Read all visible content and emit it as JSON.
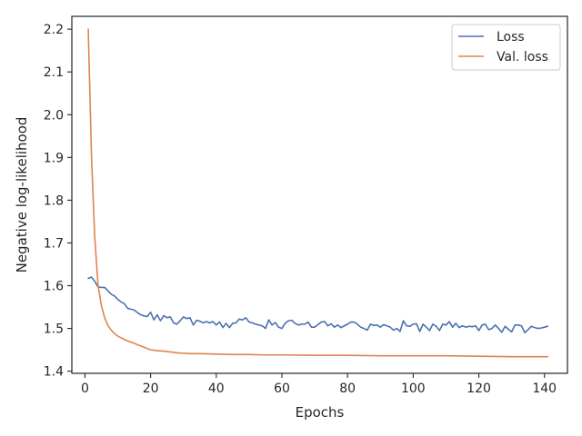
{
  "chart_data": {
    "type": "line",
    "title": "",
    "xlabel": "Epochs",
    "ylabel": "Negative log-likelihood",
    "xlim": [
      -4,
      147
    ],
    "ylim": [
      1.395,
      2.23
    ],
    "x_ticks": [
      0,
      20,
      40,
      60,
      80,
      100,
      120,
      140
    ],
    "y_ticks": [
      1.4,
      1.5,
      1.6,
      1.7,
      1.8,
      1.9,
      2.0,
      2.1,
      2.2
    ],
    "grid": false,
    "legend_position": "top-right",
    "series": [
      {
        "name": "Loss",
        "color": "#4c72b0",
        "x": [
          1,
          2,
          3,
          4,
          5,
          6,
          7,
          8,
          9,
          10,
          11,
          12,
          13,
          14,
          15,
          16,
          17,
          18,
          19,
          20,
          21,
          22,
          23,
          24,
          25,
          26,
          27,
          28,
          29,
          30,
          31,
          32,
          33,
          34,
          35,
          36,
          37,
          38,
          39,
          40,
          41,
          42,
          43,
          44,
          45,
          46,
          47,
          48,
          49,
          50,
          51,
          52,
          53,
          54,
          55,
          56,
          57,
          58,
          59,
          60,
          61,
          62,
          63,
          64,
          65,
          66,
          67,
          68,
          69,
          70,
          71,
          72,
          73,
          74,
          75,
          76,
          77,
          78,
          79,
          80,
          81,
          82,
          83,
          84,
          85,
          86,
          87,
          88,
          89,
          90,
          91,
          92,
          93,
          94,
          95,
          96,
          97,
          98,
          99,
          100,
          101,
          102,
          103,
          104,
          105,
          106,
          107,
          108,
          109,
          110,
          111,
          112,
          113,
          114,
          115,
          116,
          117,
          118,
          119,
          120,
          121,
          122,
          123,
          124,
          125,
          126,
          127,
          128,
          129,
          130,
          131,
          132,
          133,
          134,
          135,
          136,
          137,
          138,
          139,
          140,
          141
        ],
        "values": [
          1.617,
          1.62,
          1.61,
          1.597,
          1.596,
          1.596,
          1.588,
          1.58,
          1.576,
          1.568,
          1.562,
          1.558,
          1.547,
          1.545,
          1.543,
          1.537,
          1.532,
          1.529,
          1.528,
          1.538,
          1.52,
          1.532,
          1.518,
          1.53,
          1.525,
          1.527,
          1.513,
          1.51,
          1.518,
          1.527,
          1.523,
          1.525,
          1.508,
          1.519,
          1.517,
          1.513,
          1.516,
          1.513,
          1.516,
          1.508,
          1.515,
          1.502,
          1.512,
          1.502,
          1.512,
          1.513,
          1.522,
          1.52,
          1.525,
          1.515,
          1.513,
          1.51,
          1.508,
          1.506,
          1.5,
          1.52,
          1.508,
          1.514,
          1.503,
          1.5,
          1.512,
          1.518,
          1.519,
          1.512,
          1.508,
          1.51,
          1.51,
          1.515,
          1.503,
          1.503,
          1.509,
          1.515,
          1.516,
          1.506,
          1.511,
          1.503,
          1.508,
          1.502,
          1.506,
          1.51,
          1.515,
          1.515,
          1.51,
          1.503,
          1.5,
          1.496,
          1.51,
          1.507,
          1.508,
          1.503,
          1.509,
          1.506,
          1.503,
          1.496,
          1.5,
          1.493,
          1.518,
          1.506,
          1.505,
          1.51,
          1.511,
          1.493,
          1.51,
          1.503,
          1.495,
          1.51,
          1.505,
          1.495,
          1.51,
          1.508,
          1.516,
          1.503,
          1.512,
          1.502,
          1.506,
          1.503,
          1.505,
          1.504,
          1.506,
          1.495,
          1.508,
          1.51,
          1.497,
          1.5,
          1.508,
          1.5,
          1.491,
          1.505,
          1.498,
          1.492,
          1.508,
          1.508,
          1.506,
          1.49,
          1.497,
          1.505,
          1.502,
          1.5,
          1.501,
          1.503,
          1.505
        ]
      },
      {
        "name": "Val. loss",
        "color": "#dd8452",
        "x": [
          1,
          2,
          3,
          4,
          5,
          6,
          7,
          8,
          9,
          10,
          11,
          12,
          13,
          14,
          15,
          16,
          17,
          18,
          19,
          20,
          22,
          24,
          26,
          28,
          30,
          32,
          35,
          40,
          45,
          50,
          55,
          60,
          70,
          80,
          90,
          100,
          110,
          120,
          130,
          141
        ],
        "values": [
          2.2,
          1.9,
          1.71,
          1.6,
          1.553,
          1.525,
          1.507,
          1.496,
          1.488,
          1.482,
          1.478,
          1.474,
          1.471,
          1.468,
          1.465,
          1.462,
          1.459,
          1.456,
          1.453,
          1.45,
          1.448,
          1.447,
          1.445,
          1.443,
          1.442,
          1.441,
          1.441,
          1.44,
          1.439,
          1.439,
          1.438,
          1.438,
          1.437,
          1.437,
          1.436,
          1.436,
          1.436,
          1.435,
          1.434,
          1.434
        ]
      }
    ]
  }
}
